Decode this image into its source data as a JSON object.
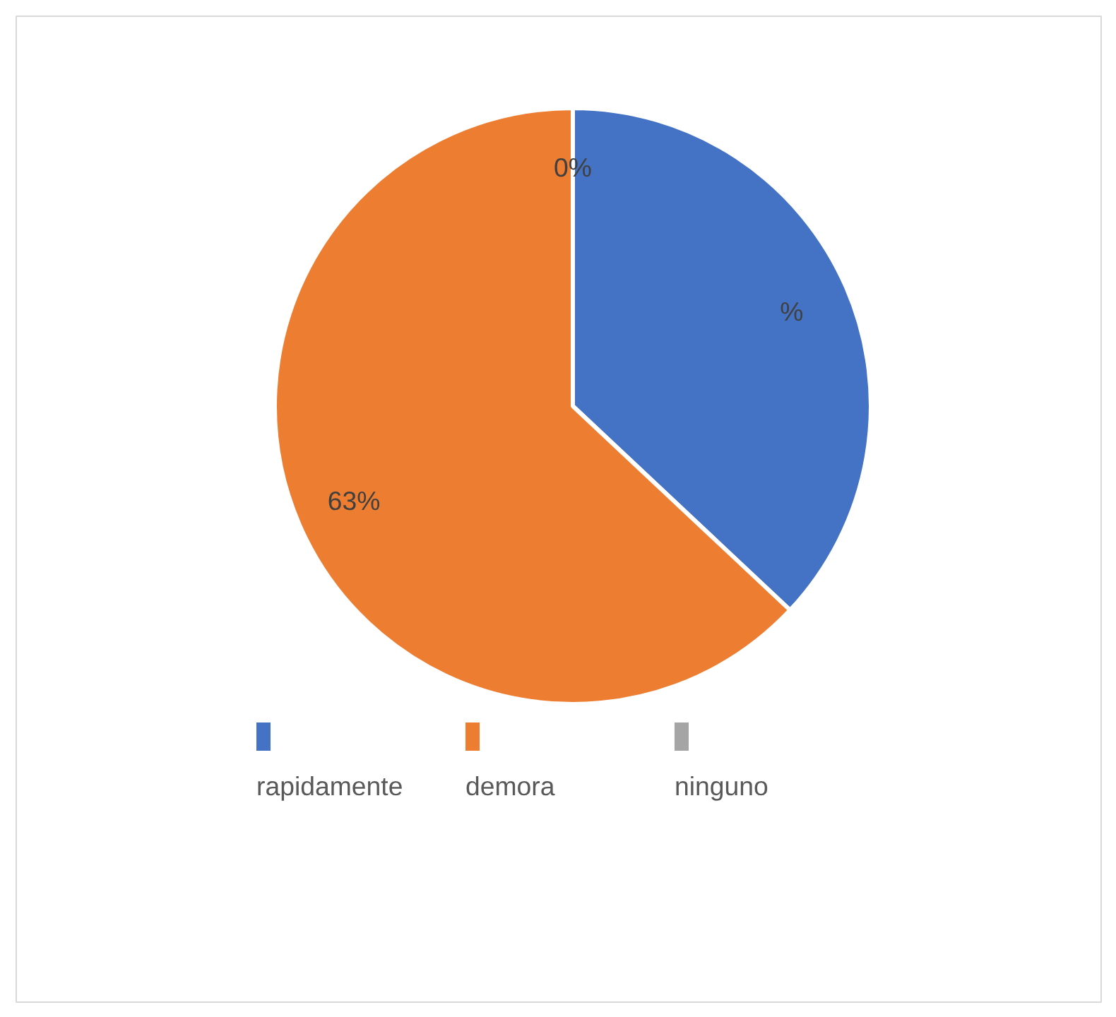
{
  "chart_data": {
    "type": "pie",
    "categories": [
      "rapidamente",
      "demora",
      "ninguno"
    ],
    "values": [
      37,
      63,
      0
    ],
    "colors": [
      "#4472c4",
      "#ed7d31",
      "#a5a5a5"
    ],
    "value_labels": [
      "%",
      "63%",
      "0%"
    ],
    "legend": "bottom"
  }
}
